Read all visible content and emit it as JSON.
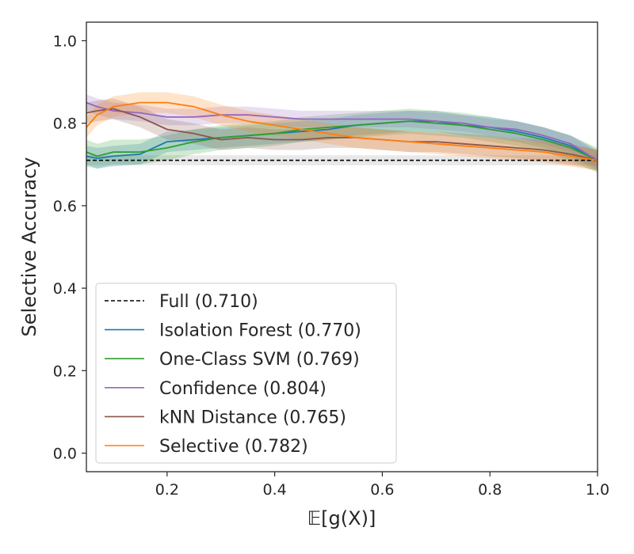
{
  "chart_data": {
    "type": "line",
    "title": "",
    "xlabel": "𝔼[g(X)]",
    "ylabel": "Selective Accuracy",
    "xlim": [
      0.05,
      1.0
    ],
    "ylim": [
      -0.045,
      1.045
    ],
    "xticks": [
      0.2,
      0.4,
      0.6,
      0.8,
      1.0
    ],
    "xtick_labels": [
      "0.2",
      "0.4",
      "0.6",
      "0.8",
      "1.0"
    ],
    "yticks": [
      0.0,
      0.2,
      0.4,
      0.6,
      0.8,
      1.0
    ],
    "ytick_labels": [
      "0.0",
      "0.2",
      "0.4",
      "0.6",
      "0.8",
      "1.0"
    ],
    "grid": false,
    "legend_position": "lower-left",
    "series": [
      {
        "name": "Full (0.710)",
        "key": "full",
        "color": "#000000",
        "dashed": true,
        "band": 0.012,
        "x": [
          0.05,
          1.0
        ],
        "y": [
          0.71,
          0.71
        ]
      },
      {
        "name": "Isolation Forest (0.770)",
        "key": "isolation-forest",
        "color": "#1f77b4",
        "dashed": false,
        "band": 0.025,
        "x": [
          0.05,
          0.07,
          0.1,
          0.15,
          0.2,
          0.25,
          0.3,
          0.35,
          0.4,
          0.45,
          0.5,
          0.55,
          0.6,
          0.65,
          0.7,
          0.75,
          0.8,
          0.85,
          0.9,
          0.95,
          1.0
        ],
        "y": [
          0.72,
          0.715,
          0.72,
          0.725,
          0.755,
          0.76,
          0.765,
          0.77,
          0.775,
          0.78,
          0.785,
          0.795,
          0.8,
          0.805,
          0.805,
          0.795,
          0.79,
          0.78,
          0.765,
          0.745,
          0.71
        ]
      },
      {
        "name": "One-Class SVM (0.769)",
        "key": "one-class-svm",
        "color": "#2ca02c",
        "dashed": false,
        "band": 0.03,
        "x": [
          0.05,
          0.07,
          0.1,
          0.15,
          0.2,
          0.25,
          0.3,
          0.35,
          0.4,
          0.45,
          0.5,
          0.55,
          0.6,
          0.65,
          0.7,
          0.75,
          0.8,
          0.85,
          0.9,
          0.95,
          1.0
        ],
        "y": [
          0.73,
          0.72,
          0.73,
          0.73,
          0.74,
          0.755,
          0.765,
          0.77,
          0.775,
          0.785,
          0.79,
          0.795,
          0.8,
          0.805,
          0.8,
          0.795,
          0.785,
          0.775,
          0.76,
          0.74,
          0.71
        ]
      },
      {
        "name": "Confidence (0.804)",
        "key": "confidence",
        "color": "#9467bd",
        "dashed": false,
        "band": 0.02,
        "x": [
          0.05,
          0.07,
          0.1,
          0.15,
          0.2,
          0.25,
          0.3,
          0.35,
          0.4,
          0.45,
          0.5,
          0.55,
          0.6,
          0.65,
          0.7,
          0.75,
          0.8,
          0.85,
          0.9,
          0.95,
          1.0
        ],
        "y": [
          0.85,
          0.84,
          0.83,
          0.825,
          0.815,
          0.815,
          0.82,
          0.82,
          0.815,
          0.81,
          0.81,
          0.81,
          0.81,
          0.81,
          0.805,
          0.8,
          0.79,
          0.785,
          0.77,
          0.75,
          0.71
        ]
      },
      {
        "name": "kNN Distance (0.765)",
        "key": "knn-distance",
        "color": "#8c564b",
        "dashed": false,
        "band": 0.025,
        "x": [
          0.05,
          0.07,
          0.1,
          0.15,
          0.2,
          0.25,
          0.3,
          0.35,
          0.4,
          0.45,
          0.5,
          0.55,
          0.6,
          0.65,
          0.7,
          0.75,
          0.8,
          0.85,
          0.9,
          0.95,
          1.0
        ],
        "y": [
          0.825,
          0.83,
          0.835,
          0.815,
          0.785,
          0.775,
          0.76,
          0.765,
          0.76,
          0.76,
          0.765,
          0.765,
          0.76,
          0.755,
          0.755,
          0.75,
          0.745,
          0.74,
          0.735,
          0.725,
          0.71
        ]
      },
      {
        "name": "Selective (0.782)",
        "key": "selective",
        "color": "#ff7f0e",
        "dashed": false,
        "band": 0.025,
        "x": [
          0.05,
          0.07,
          0.1,
          0.15,
          0.2,
          0.25,
          0.3,
          0.35,
          0.4,
          0.45,
          0.5,
          0.55,
          0.6,
          0.65,
          0.7,
          0.75,
          0.8,
          0.85,
          0.9,
          0.95,
          1.0
        ],
        "y": [
          0.79,
          0.82,
          0.84,
          0.85,
          0.85,
          0.84,
          0.82,
          0.805,
          0.795,
          0.785,
          0.775,
          0.765,
          0.76,
          0.755,
          0.75,
          0.745,
          0.74,
          0.735,
          0.73,
          0.72,
          0.71
        ]
      }
    ]
  }
}
